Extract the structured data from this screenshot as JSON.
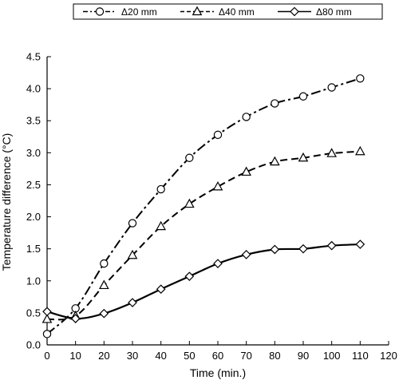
{
  "chart_data": {
    "type": "line",
    "title": "",
    "xlabel": "Time (min.)",
    "ylabel": "Temperature difference (°C)",
    "xlim": [
      0,
      120
    ],
    "ylim": [
      0,
      4.5
    ],
    "xticks": [
      0,
      10,
      20,
      30,
      40,
      50,
      60,
      70,
      80,
      90,
      100,
      110,
      120
    ],
    "xtick_labels": [
      "0",
      "10",
      "20",
      "30",
      "40",
      "50",
      "60",
      "70",
      "80",
      "90",
      "100",
      "110",
      "120"
    ],
    "yticks": [
      0,
      0.5,
      1,
      1.5,
      2,
      2.5,
      3,
      3.5,
      4,
      4.5
    ],
    "ytick_labels": [
      "0.0",
      "0.5",
      "1.0",
      "1.5",
      "2.0",
      "2.5",
      "3.0",
      "3.5",
      "4.0",
      "4.5"
    ],
    "grid": false,
    "legend_position": "top",
    "x": [
      0,
      10,
      20,
      30,
      40,
      50,
      60,
      70,
      80,
      90,
      100,
      110
    ],
    "series": [
      {
        "name": "Δ20 mm",
        "marker": "circle",
        "line_style": "dash-dot",
        "values": [
          0.17,
          0.57,
          1.27,
          1.9,
          2.43,
          2.92,
          3.28,
          3.56,
          3.77,
          3.88,
          4.02,
          4.16
        ]
      },
      {
        "name": "Δ40 mm",
        "marker": "triangle",
        "line_style": "dashed",
        "values": [
          0.4,
          0.45,
          0.93,
          1.4,
          1.85,
          2.2,
          2.47,
          2.7,
          2.86,
          2.92,
          2.99,
          3.02
        ]
      },
      {
        "name": "Δ80 mm",
        "marker": "diamond",
        "line_style": "solid",
        "values": [
          0.52,
          0.41,
          0.49,
          0.66,
          0.87,
          1.07,
          1.27,
          1.41,
          1.49,
          1.5,
          1.55,
          1.57
        ]
      }
    ]
  }
}
